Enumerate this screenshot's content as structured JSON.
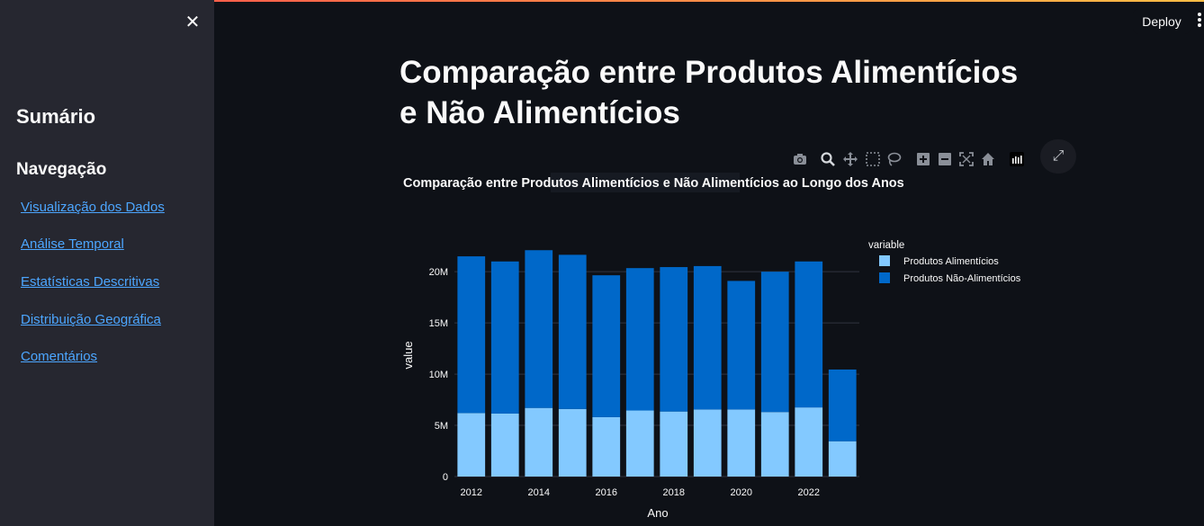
{
  "sidebar": {
    "summary_title": "Sumário",
    "nav_title": "Navegação",
    "links": [
      "Visualização dos Dados",
      "Análise Temporal",
      "Estatísticas Descritivas",
      "Distribuição Geográfica",
      "Comentários"
    ],
    "close_icon": "close-icon"
  },
  "header": {
    "deploy_label": "Deploy",
    "menu_icon": "vertical-dots-icon"
  },
  "main": {
    "title": "Comparação entre Produtos Alimentícios e Não Alimentícios"
  },
  "modebar_icons": [
    "camera-icon",
    "zoom-icon",
    "pan-icon",
    "box-select-icon",
    "lasso-icon",
    "zoom-in-icon",
    "zoom-out-icon",
    "autoscale-icon",
    "reset-axes-icon",
    "plotly-logo-icon"
  ],
  "chart_data": {
    "type": "bar",
    "stacked": true,
    "title": "Comparação entre Produtos Alimentícios e Não Alimentícios ao Longo dos Anos",
    "xlabel": "Ano",
    "ylabel": "value",
    "ylim": [
      0,
      23000000
    ],
    "yticks": [
      0,
      5000000,
      10000000,
      15000000,
      20000000
    ],
    "ytick_labels": [
      "0",
      "5M",
      "10M",
      "15M",
      "20M"
    ],
    "xticks": [
      "2012",
      "2014",
      "2016",
      "2018",
      "2020",
      "2022"
    ],
    "grid": true,
    "legend_title": "variable",
    "legend_position": "right",
    "categories": [
      "2012",
      "2013",
      "2014",
      "2015",
      "2016",
      "2017",
      "2018",
      "2019",
      "2020",
      "2021",
      "2022",
      "2023"
    ],
    "series": [
      {
        "name": "Produtos Alimentícios",
        "color": "#83c9ff",
        "values": [
          6200000,
          6150000,
          6700000,
          6600000,
          5800000,
          6450000,
          6350000,
          6550000,
          6550000,
          6300000,
          6750000,
          3450000
        ]
      },
      {
        "name": "Produtos Não-Alimentícios",
        "color": "#0068c9",
        "values": [
          15300000,
          14850000,
          15400000,
          15050000,
          13850000,
          13900000,
          14100000,
          14000000,
          12550000,
          13700000,
          14250000,
          7000000
        ]
      }
    ]
  }
}
